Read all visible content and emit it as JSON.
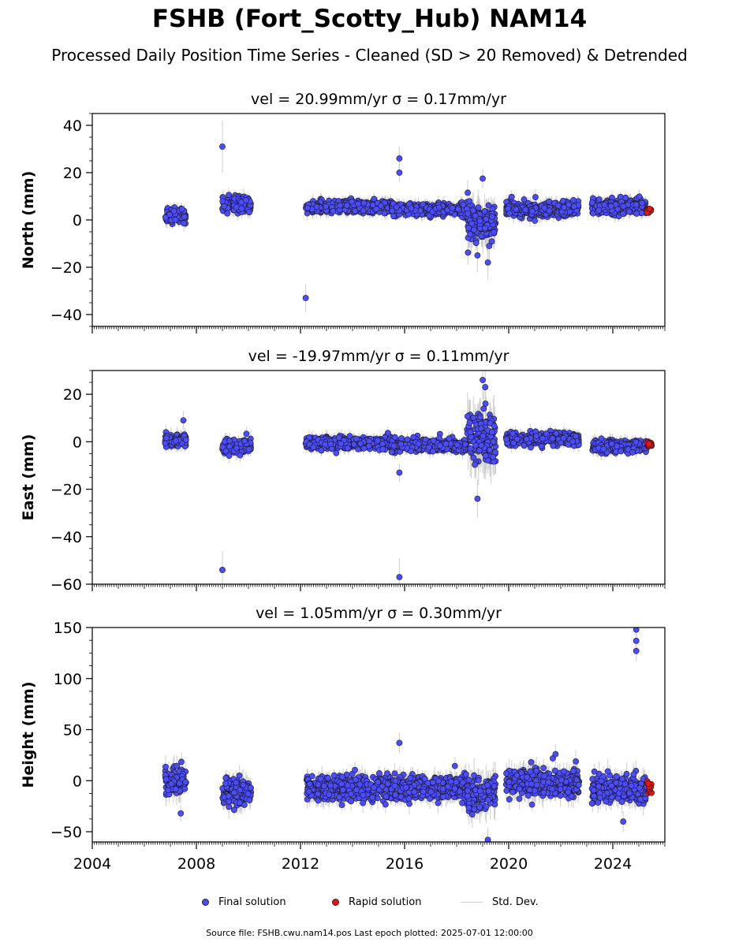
{
  "header": {
    "title": "FSHB (Fort_Scotty_Hub) NAM14",
    "subtitle": "Processed Daily Position Time Series - Cleaned (SD > 20 Removed) & Detrended"
  },
  "legend": {
    "final_label": "Final solution",
    "rapid_label": "Rapid solution",
    "std_label": "Std. Dev."
  },
  "footer": {
    "text": "Source file: FSHB.cwu.nam14.pos  Last epoch plotted: 2025-07-01 12:00:00"
  },
  "colors": {
    "final": "#4b4bff",
    "rapid": "#ee1111",
    "std": "#c8c8c8",
    "marker_edge": "#1a1a1a"
  },
  "chart_data": [
    {
      "type": "scatter",
      "title": "vel = 20.99mm/yr   σ = 0.17mm/yr",
      "ylabel": "North (mm)",
      "xlim": [
        2004,
        2026
      ],
      "ylim": [
        -45,
        45
      ],
      "yticks": [
        -40,
        -20,
        0,
        20,
        40
      ],
      "xticks": [
        2004,
        2008,
        2012,
        2016,
        2020,
        2024
      ],
      "xticklabels": [],
      "segments": [
        {
          "start": 2006.8,
          "end": 2007.6,
          "center": 2,
          "spread": 2.2,
          "sd": 2.5
        },
        {
          "start": 2009.0,
          "end": 2010.1,
          "center": 6.5,
          "spread": 2.2,
          "sd": 2.5
        },
        {
          "start": 2012.2,
          "end": 2015.5,
          "center": 5.5,
          "spread": 1.8,
          "sd": 2.2
        },
        {
          "start": 2015.5,
          "end": 2018.4,
          "center": 4.5,
          "spread": 1.8,
          "sd": 2.2
        },
        {
          "start": 2018.4,
          "end": 2019.5,
          "center": -1,
          "spread": 5.5,
          "sd": 5.5
        },
        {
          "start": 2019.9,
          "end": 2022.7,
          "center": 4.5,
          "spread": 2.2,
          "sd": 2.5
        },
        {
          "start": 2023.2,
          "end": 2025.3,
          "center": 5.5,
          "spread": 2.2,
          "sd": 2.5
        }
      ],
      "outliers": [
        {
          "x": 2009.0,
          "y": 31,
          "sd": 11
        },
        {
          "x": 2012.2,
          "y": -33,
          "sd": 6
        },
        {
          "x": 2015.8,
          "y": 26,
          "sd": 5
        },
        {
          "x": 2015.8,
          "y": 20,
          "sd": 4
        },
        {
          "x": 2019.0,
          "y": 17.5,
          "sd": 4
        },
        {
          "x": 2018.8,
          "y": -15,
          "sd": 7
        },
        {
          "x": 2019.2,
          "y": -18,
          "sd": 7
        }
      ],
      "rapid": {
        "start": 2025.3,
        "end": 2025.5,
        "center": 4.2,
        "spread": 1.0
      }
    },
    {
      "type": "scatter",
      "title": "vel = -19.97mm/yr   σ = 0.11mm/yr",
      "ylabel": "East (mm)",
      "xlim": [
        2004,
        2026
      ],
      "ylim": [
        -60,
        30
      ],
      "yticks": [
        -60,
        -40,
        -20,
        0,
        20
      ],
      "xticks": [
        2004,
        2008,
        2012,
        2016,
        2020,
        2024
      ],
      "xticklabels": [],
      "segments": [
        {
          "start": 2006.8,
          "end": 2007.6,
          "center": 0.5,
          "spread": 2.0,
          "sd": 2.5
        },
        {
          "start": 2009.0,
          "end": 2010.1,
          "center": -2,
          "spread": 2.0,
          "sd": 2.5
        },
        {
          "start": 2012.2,
          "end": 2015.5,
          "center": -0.5,
          "spread": 1.8,
          "sd": 2.2
        },
        {
          "start": 2015.5,
          "end": 2018.4,
          "center": -1.5,
          "spread": 1.8,
          "sd": 2.2
        },
        {
          "start": 2018.4,
          "end": 2019.5,
          "center": 2,
          "spread": 7,
          "sd": 8
        },
        {
          "start": 2019.9,
          "end": 2022.7,
          "center": 1,
          "spread": 1.8,
          "sd": 2.2
        },
        {
          "start": 2023.2,
          "end": 2025.3,
          "center": -2,
          "spread": 1.8,
          "sd": 2.2
        }
      ],
      "outliers": [
        {
          "x": 2009.0,
          "y": -54,
          "sd": 8
        },
        {
          "x": 2015.8,
          "y": -57,
          "sd": 8
        },
        {
          "x": 2015.8,
          "y": -13,
          "sd": 4
        },
        {
          "x": 2018.8,
          "y": -24,
          "sd": 8
        },
        {
          "x": 2019.0,
          "y": 26,
          "sd": 8
        },
        {
          "x": 2019.1,
          "y": 23,
          "sd": 8
        },
        {
          "x": 2007.5,
          "y": 9,
          "sd": 4
        }
      ],
      "rapid": {
        "start": 2025.3,
        "end": 2025.5,
        "center": -1,
        "spread": 0.8
      }
    },
    {
      "type": "scatter",
      "title": "vel = 1.05mm/yr   σ = 0.30mm/yr",
      "ylabel": "Height (mm)",
      "xlim": [
        2004,
        2026
      ],
      "ylim": [
        -60,
        150
      ],
      "yticks": [
        -50,
        0,
        50,
        100,
        150
      ],
      "xticks": [
        2004,
        2008,
        2012,
        2016,
        2020,
        2024
      ],
      "xticklabels": [
        "2004",
        "2008",
        "2012",
        "2016",
        "2020",
        "2024"
      ],
      "segments": [
        {
          "start": 2006.8,
          "end": 2007.6,
          "center": 0,
          "spread": 9,
          "sd": 9
        },
        {
          "start": 2009.0,
          "end": 2010.1,
          "center": -12,
          "spread": 9,
          "sd": 9
        },
        {
          "start": 2012.2,
          "end": 2015.5,
          "center": -7,
          "spread": 8,
          "sd": 8
        },
        {
          "start": 2015.5,
          "end": 2018.4,
          "center": -7,
          "spread": 8,
          "sd": 8
        },
        {
          "start": 2018.4,
          "end": 2019.5,
          "center": -12,
          "spread": 12,
          "sd": 12
        },
        {
          "start": 2019.9,
          "end": 2022.7,
          "center": -2,
          "spread": 9,
          "sd": 9
        },
        {
          "start": 2023.2,
          "end": 2025.3,
          "center": -8,
          "spread": 9,
          "sd": 9
        }
      ],
      "outliers": [
        {
          "x": 2024.9,
          "y": 148,
          "sd": 10
        },
        {
          "x": 2024.9,
          "y": 137,
          "sd": 10
        },
        {
          "x": 2024.9,
          "y": 127,
          "sd": 10
        },
        {
          "x": 2015.8,
          "y": 37,
          "sd": 10
        },
        {
          "x": 2021.8,
          "y": 26,
          "sd": 10
        },
        {
          "x": 2019.2,
          "y": -58,
          "sd": 12
        },
        {
          "x": 2024.4,
          "y": -40,
          "sd": 10
        },
        {
          "x": 2007.4,
          "y": -32,
          "sd": 8
        }
      ],
      "rapid": {
        "start": 2025.3,
        "end": 2025.5,
        "center": -8,
        "spread": 7
      }
    }
  ]
}
